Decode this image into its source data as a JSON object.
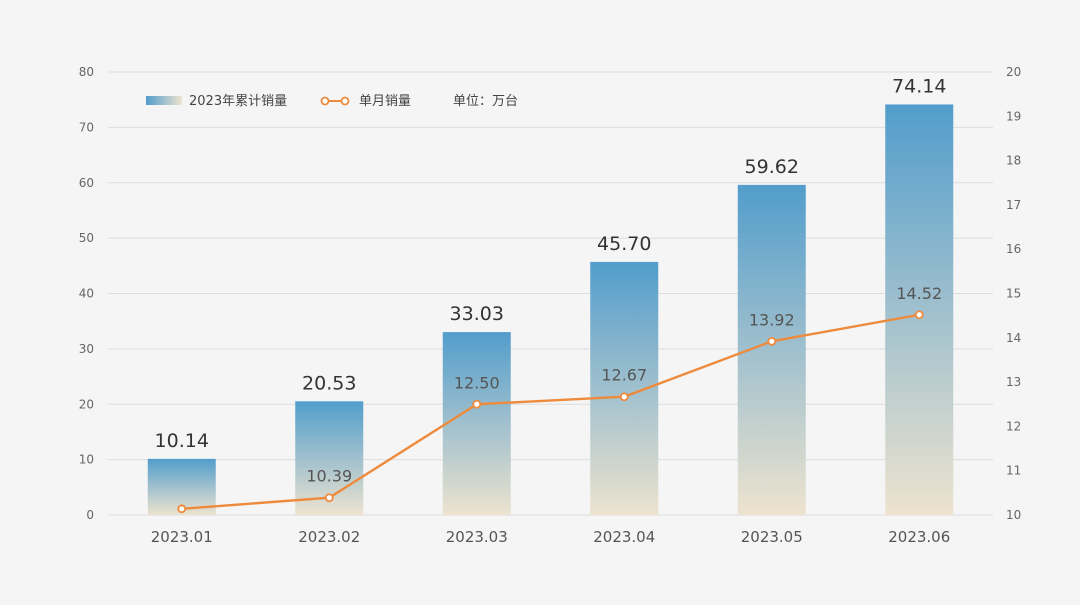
{
  "chart_data": {
    "type": "bar",
    "categories": [
      "2023.01",
      "2023.02",
      "2023.03",
      "2023.04",
      "2023.05",
      "2023.06"
    ],
    "series": [
      {
        "name": "2023年累计销量",
        "type": "bar",
        "axis": "left",
        "values": [
          10.14,
          20.53,
          33.03,
          45.7,
          59.62,
          74.14
        ],
        "labels": [
          "10.14",
          "20.53",
          "33.03",
          "45.70",
          "59.62",
          "74.14"
        ]
      },
      {
        "name": "单月销量",
        "type": "line",
        "axis": "right",
        "values": [
          10.14,
          10.39,
          12.5,
          12.67,
          13.92,
          14.52
        ],
        "labels": [
          "",
          "10.39",
          "12.50",
          "12.67",
          "13.92",
          "14.52"
        ]
      }
    ],
    "y_left": {
      "range": [
        0,
        80
      ],
      "ticks": [
        "0",
        "10",
        "20",
        "30",
        "40",
        "50",
        "60",
        "70",
        "80"
      ]
    },
    "y_right": {
      "range": [
        10,
        20
      ],
      "ticks": [
        "10",
        "11",
        "12",
        "13",
        "14",
        "15",
        "16",
        "17",
        "18",
        "19",
        "20"
      ]
    },
    "legend": {
      "placement": "top-left",
      "bar_label": "2023年累计销量",
      "line_label": "单月销量",
      "unit_label": "单位：万台"
    },
    "colors": {
      "bar_top": "#529dcc",
      "bar_bottom": "#ede3cf",
      "line": "#ee8a3c",
      "marker_fill": "#ffffff"
    },
    "grid": true
  }
}
